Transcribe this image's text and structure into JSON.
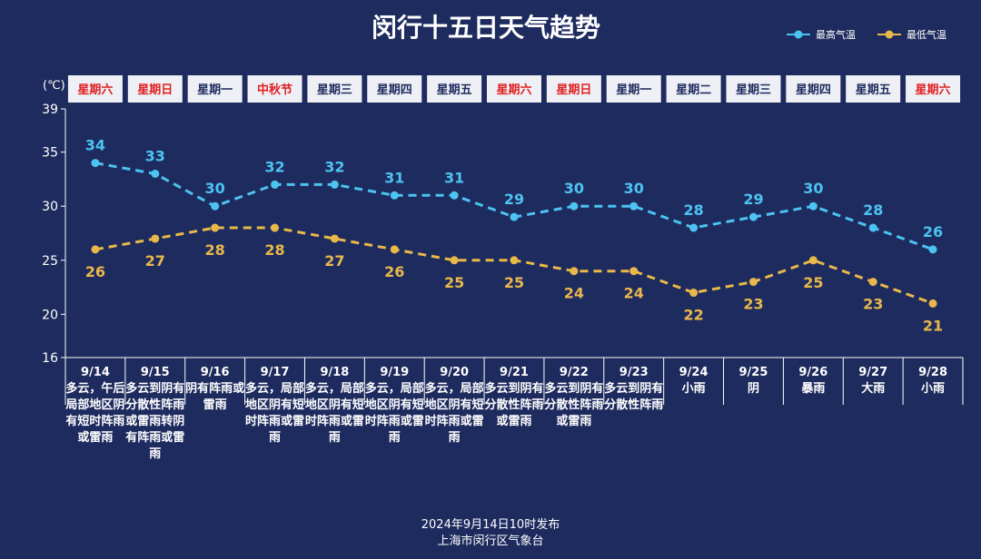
{
  "colors": {
    "background": "#1e2b5e",
    "high": "#4cc3f1",
    "low": "#e9b84a",
    "weekday_normal": "#1e2b5e",
    "weekday_holiday": "#e02020"
  },
  "chart_data": {
    "type": "line",
    "title": "闵行十五日天气趋势",
    "unit": "(℃)",
    "ylim": [
      16,
      39
    ],
    "yticks": [
      16,
      20,
      25,
      30,
      35,
      39
    ],
    "grid": false,
    "legend_position": "top-right",
    "categories": [
      "9/14",
      "9/15",
      "9/16",
      "9/17",
      "9/18",
      "9/19",
      "9/20",
      "9/21",
      "9/22",
      "9/23",
      "9/24",
      "9/25",
      "9/26",
      "9/27",
      "9/28"
    ],
    "weekdays": [
      "星期六",
      "星期日",
      "星期一",
      "中秋节",
      "星期三",
      "星期四",
      "星期五",
      "星期六",
      "星期日",
      "星期一",
      "星期二",
      "星期三",
      "星期四",
      "星期五",
      "星期六"
    ],
    "weekday_red": [
      true,
      true,
      false,
      true,
      false,
      false,
      false,
      true,
      true,
      false,
      false,
      false,
      false,
      false,
      true
    ],
    "weather": [
      "多云，午后局部地区阴有短时阵雨或雷雨",
      "多云到阴有分散性阵雨或雷雨转阴有阵雨或雷雨",
      "阴有阵雨或雷雨",
      "多云，局部地区阴有短时阵雨或雷雨",
      "多云，局部地区阴有短时阵雨或雷雨",
      "多云，局部地区阴有短时阵雨或雷雨",
      "多云，局部地区阴有短时阵雨或雷雨",
      "多云到阴有分散性阵雨或雷雨",
      "多云到阴有分散性阵雨或雷雨",
      "多云到阴有分散性阵雨",
      "小雨",
      "阴",
      "暴雨",
      "大雨",
      "小雨"
    ],
    "series": [
      {
        "name": "最高气温",
        "values": [
          34,
          33,
          30,
          32,
          32,
          31,
          31,
          29,
          30,
          30,
          28,
          29,
          30,
          28,
          26
        ]
      },
      {
        "name": "最低气温",
        "values": [
          26,
          27,
          28,
          28,
          27,
          26,
          25,
          25,
          24,
          24,
          22,
          23,
          25,
          23,
          21
        ]
      }
    ]
  },
  "footer": {
    "line1": "2024年9月14日10时发布",
    "line2": "上海市闵行区气象台"
  }
}
